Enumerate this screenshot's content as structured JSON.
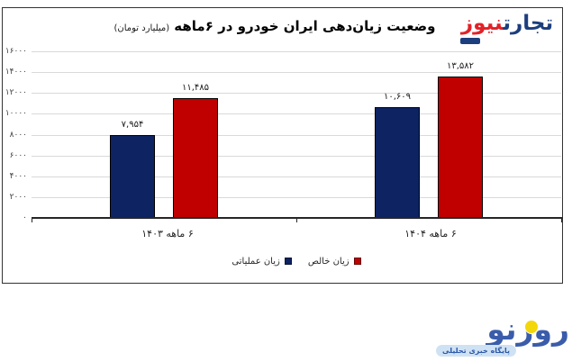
{
  "header": {
    "title": "وضعیت زیان‌دهی ایران خودرو در ۶ماهه",
    "title_unit": "(میلیارد تومان)",
    "brand": {
      "name_first": "تجارت",
      "name_second": "نیوز"
    }
  },
  "chart_data": {
    "type": "bar",
    "title": "وضعیت زیان‌دهی ایران خودرو در ۶ماهه",
    "unit": "میلیارد تومان",
    "categories": [
      "۶ ماهه ۱۴۰۳",
      "۶ ماهه ۱۴۰۴"
    ],
    "series": [
      {
        "name": "زیان عملیاتی",
        "color": "#0d2362",
        "values": [
          7954,
          10609
        ],
        "value_labels": [
          "۷,۹۵۴",
          "۱۰,۶۰۹"
        ]
      },
      {
        "name": "زیان خالص",
        "color": "#c00000",
        "values": [
          11485,
          13582
        ],
        "value_labels": [
          "۱۱,۴۸۵",
          "۱۳,۵۸۲"
        ]
      }
    ],
    "ylim": [
      0,
      16000
    ],
    "ytick_step": 2000,
    "ytick_labels": [
      "۰",
      "۲۰۰۰",
      "۴۰۰۰",
      "۶۰۰۰",
      "۸۰۰۰",
      "۱۰۰۰۰",
      "۱۲۰۰۰",
      "۱۴۰۰۰",
      "۱۶۰۰۰"
    ],
    "grid": true,
    "legend_position": "bottom-center"
  },
  "footer": {
    "brand_name": "روزنو",
    "brand_tagline": "پایگاه خبری تحلیلی"
  },
  "colors": {
    "bar_blue": "#0d2362",
    "bar_red": "#c00000",
    "brand_blue": "#1c3e7e",
    "brand_red": "#e22128",
    "rooz_blue": "#3a5caa",
    "rooz_yellow": "#f3d70b"
  }
}
